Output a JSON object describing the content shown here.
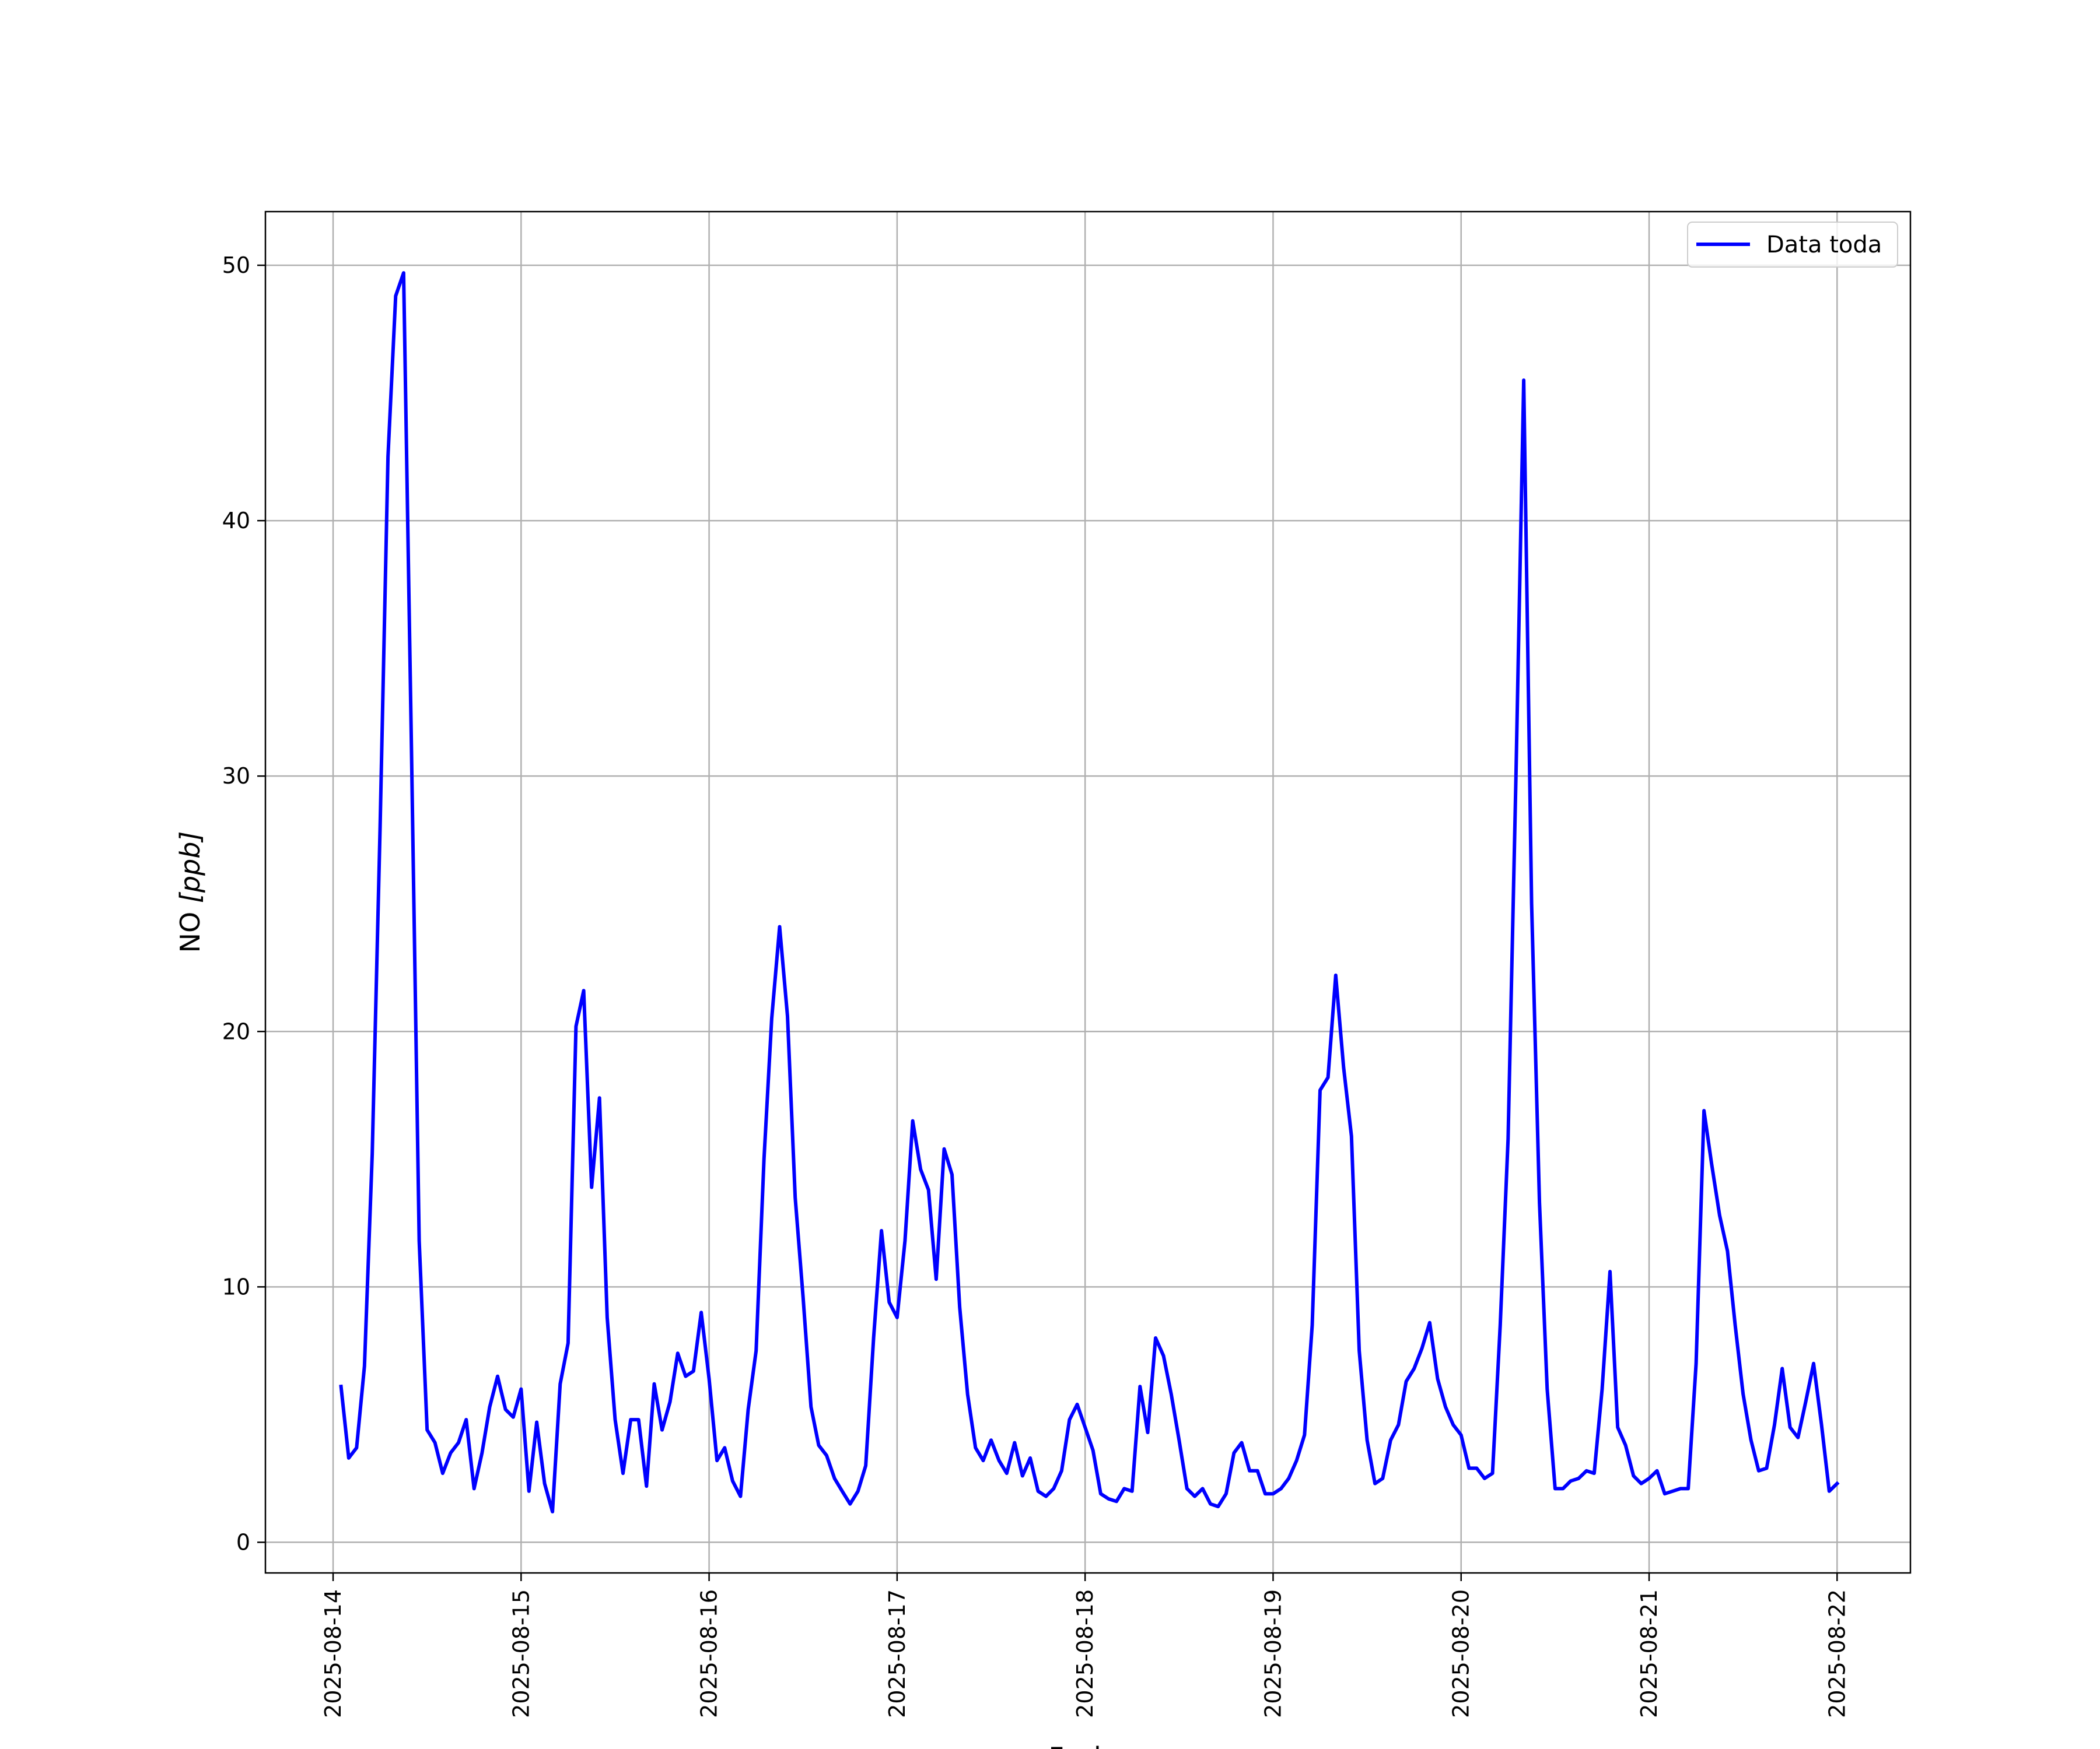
{
  "chart_data": {
    "type": "line",
    "title": "",
    "xlabel": "Fecha",
    "ylabel_text": "NO ",
    "ylabel_unit": "[ppb]",
    "ylim": [
      -1.2,
      52.1
    ],
    "xlim": [
      -0.36,
      8.39
    ],
    "grid": true,
    "legend_position": "top-right",
    "x_ticks": [
      {
        "x": 0,
        "label": "2025-08-14"
      },
      {
        "x": 1,
        "label": "2025-08-15"
      },
      {
        "x": 2,
        "label": "2025-08-16"
      },
      {
        "x": 3,
        "label": "2025-08-17"
      },
      {
        "x": 4,
        "label": "2025-08-18"
      },
      {
        "x": 5,
        "label": "2025-08-19"
      },
      {
        "x": 6,
        "label": "2025-08-20"
      },
      {
        "x": 7,
        "label": "2025-08-21"
      },
      {
        "x": 8,
        "label": "2025-08-22"
      }
    ],
    "y_ticks": [
      {
        "y": 0,
        "label": "0"
      },
      {
        "y": 10,
        "label": "10"
      },
      {
        "y": 20,
        "label": "20"
      },
      {
        "y": 30,
        "label": "30"
      },
      {
        "y": 40,
        "label": "40"
      },
      {
        "y": 50,
        "label": "50"
      }
    ],
    "series": [
      {
        "name": "Data toda",
        "color": "#0000ff",
        "x_unit": "days since 2025-08-14 00:00",
        "points": [
          [
            0.042,
            6.1
          ],
          [
            0.083,
            3.3
          ],
          [
            0.125,
            3.7
          ],
          [
            0.167,
            6.9
          ],
          [
            0.208,
            15.2
          ],
          [
            0.25,
            28.0
          ],
          [
            0.292,
            42.5
          ],
          [
            0.333,
            48.8
          ],
          [
            0.375,
            49.7
          ],
          [
            0.417,
            31.0
          ],
          [
            0.458,
            11.8
          ],
          [
            0.5,
            4.4
          ],
          [
            0.542,
            3.9
          ],
          [
            0.583,
            2.7
          ],
          [
            0.625,
            3.5
          ],
          [
            0.667,
            3.9
          ],
          [
            0.708,
            4.8
          ],
          [
            0.75,
            2.1
          ],
          [
            0.792,
            3.5
          ],
          [
            0.833,
            5.3
          ],
          [
            0.875,
            6.5
          ],
          [
            0.917,
            5.2
          ],
          [
            0.958,
            4.9
          ],
          [
            1.0,
            6.0
          ],
          [
            1.042,
            2.0
          ],
          [
            1.083,
            4.7
          ],
          [
            1.125,
            2.3
          ],
          [
            1.167,
            1.2
          ],
          [
            1.208,
            6.2
          ],
          [
            1.25,
            7.8
          ],
          [
            1.292,
            20.2
          ],
          [
            1.333,
            21.6
          ],
          [
            1.375,
            13.9
          ],
          [
            1.417,
            17.4
          ],
          [
            1.458,
            8.8
          ],
          [
            1.5,
            4.8
          ],
          [
            1.542,
            2.7
          ],
          [
            1.583,
            4.8
          ],
          [
            1.625,
            4.8
          ],
          [
            1.667,
            2.2
          ],
          [
            1.708,
            6.2
          ],
          [
            1.75,
            4.4
          ],
          [
            1.792,
            5.5
          ],
          [
            1.833,
            7.4
          ],
          [
            1.875,
            6.5
          ],
          [
            1.917,
            6.7
          ],
          [
            1.958,
            9.0
          ],
          [
            2.0,
            6.4
          ],
          [
            2.042,
            3.2
          ],
          [
            2.083,
            3.7
          ],
          [
            2.125,
            2.4
          ],
          [
            2.167,
            1.8
          ],
          [
            2.208,
            5.2
          ],
          [
            2.25,
            7.5
          ],
          [
            2.292,
            15.0
          ],
          [
            2.333,
            20.5
          ],
          [
            2.375,
            24.1
          ],
          [
            2.417,
            20.6
          ],
          [
            2.458,
            13.5
          ],
          [
            2.5,
            9.6
          ],
          [
            2.542,
            5.3
          ],
          [
            2.583,
            3.8
          ],
          [
            2.625,
            3.4
          ],
          [
            2.667,
            2.5
          ],
          [
            2.708,
            2.0
          ],
          [
            2.75,
            1.5
          ],
          [
            2.792,
            2.0
          ],
          [
            2.833,
            3.0
          ],
          [
            2.875,
            8.0
          ],
          [
            2.917,
            12.2
          ],
          [
            2.958,
            9.4
          ],
          [
            3.0,
            8.8
          ],
          [
            3.042,
            11.8
          ],
          [
            3.083,
            16.5
          ],
          [
            3.125,
            14.6
          ],
          [
            3.167,
            13.8
          ],
          [
            3.208,
            10.3
          ],
          [
            3.25,
            15.4
          ],
          [
            3.292,
            14.4
          ],
          [
            3.333,
            9.2
          ],
          [
            3.375,
            5.8
          ],
          [
            3.417,
            3.7
          ],
          [
            3.458,
            3.2
          ],
          [
            3.5,
            4.0
          ],
          [
            3.542,
            3.2
          ],
          [
            3.583,
            2.7
          ],
          [
            3.625,
            3.9
          ],
          [
            3.667,
            2.6
          ],
          [
            3.708,
            3.3
          ],
          [
            3.75,
            2.0
          ],
          [
            3.792,
            1.8
          ],
          [
            3.833,
            2.1
          ],
          [
            3.875,
            2.8
          ],
          [
            3.917,
            4.8
          ],
          [
            3.958,
            5.4
          ],
          [
            4.0,
            4.5
          ],
          [
            4.042,
            3.6
          ],
          [
            4.083,
            1.9
          ],
          [
            4.125,
            1.7
          ],
          [
            4.167,
            1.6
          ],
          [
            4.208,
            2.1
          ],
          [
            4.25,
            2.0
          ],
          [
            4.292,
            6.1
          ],
          [
            4.333,
            4.3
          ],
          [
            4.375,
            8.0
          ],
          [
            4.417,
            7.3
          ],
          [
            4.458,
            5.8
          ],
          [
            4.5,
            4.0
          ],
          [
            4.542,
            2.1
          ],
          [
            4.583,
            1.8
          ],
          [
            4.625,
            2.1
          ],
          [
            4.667,
            1.5
          ],
          [
            4.708,
            1.4
          ],
          [
            4.75,
            1.9
          ],
          [
            4.792,
            3.5
          ],
          [
            4.833,
            3.9
          ],
          [
            4.875,
            2.8
          ],
          [
            4.917,
            2.8
          ],
          [
            4.958,
            1.9
          ],
          [
            5.0,
            1.9
          ],
          [
            5.042,
            2.1
          ],
          [
            5.083,
            2.5
          ],
          [
            5.125,
            3.2
          ],
          [
            5.167,
            4.2
          ],
          [
            5.208,
            8.5
          ],
          [
            5.25,
            17.7
          ],
          [
            5.292,
            18.2
          ],
          [
            5.333,
            22.2
          ],
          [
            5.375,
            18.6
          ],
          [
            5.417,
            15.9
          ],
          [
            5.458,
            7.5
          ],
          [
            5.5,
            4.0
          ],
          [
            5.542,
            2.3
          ],
          [
            5.583,
            2.5
          ],
          [
            5.625,
            4.0
          ],
          [
            5.667,
            4.6
          ],
          [
            5.708,
            6.3
          ],
          [
            5.75,
            6.8
          ],
          [
            5.792,
            7.6
          ],
          [
            5.833,
            8.6
          ],
          [
            5.875,
            6.4
          ],
          [
            5.917,
            5.3
          ],
          [
            5.958,
            4.6
          ],
          [
            6.0,
            4.2
          ],
          [
            6.042,
            2.9
          ],
          [
            6.083,
            2.9
          ],
          [
            6.125,
            2.5
          ],
          [
            6.167,
            2.7
          ],
          [
            6.208,
            8.5
          ],
          [
            6.25,
            15.8
          ],
          [
            6.292,
            30.0
          ],
          [
            6.333,
            45.5
          ],
          [
            6.375,
            25.0
          ],
          [
            6.417,
            13.3
          ],
          [
            6.458,
            6.0
          ],
          [
            6.5,
            2.1
          ],
          [
            6.542,
            2.1
          ],
          [
            6.583,
            2.4
          ],
          [
            6.625,
            2.5
          ],
          [
            6.667,
            2.8
          ],
          [
            6.708,
            2.7
          ],
          [
            6.75,
            6.0
          ],
          [
            6.792,
            10.6
          ],
          [
            6.833,
            4.5
          ],
          [
            6.875,
            3.8
          ],
          [
            6.917,
            2.6
          ],
          [
            6.958,
            2.3
          ],
          [
            7.0,
            2.5
          ],
          [
            7.042,
            2.8
          ],
          [
            7.083,
            1.9
          ],
          [
            7.125,
            2.0
          ],
          [
            7.167,
            2.1
          ],
          [
            7.208,
            2.1
          ],
          [
            7.25,
            7.0
          ],
          [
            7.292,
            16.9
          ],
          [
            7.333,
            14.8
          ],
          [
            7.375,
            12.8
          ],
          [
            7.417,
            11.4
          ],
          [
            7.458,
            8.5
          ],
          [
            7.5,
            5.8
          ],
          [
            7.542,
            4.0
          ],
          [
            7.583,
            2.8
          ],
          [
            7.625,
            2.9
          ],
          [
            7.667,
            4.6
          ],
          [
            7.708,
            6.8
          ],
          [
            7.75,
            4.5
          ],
          [
            7.792,
            4.1
          ],
          [
            7.833,
            5.5
          ],
          [
            7.875,
            7.0
          ],
          [
            7.917,
            4.6
          ],
          [
            7.958,
            2.0
          ],
          [
            8.0,
            2.3
          ]
        ]
      }
    ]
  }
}
